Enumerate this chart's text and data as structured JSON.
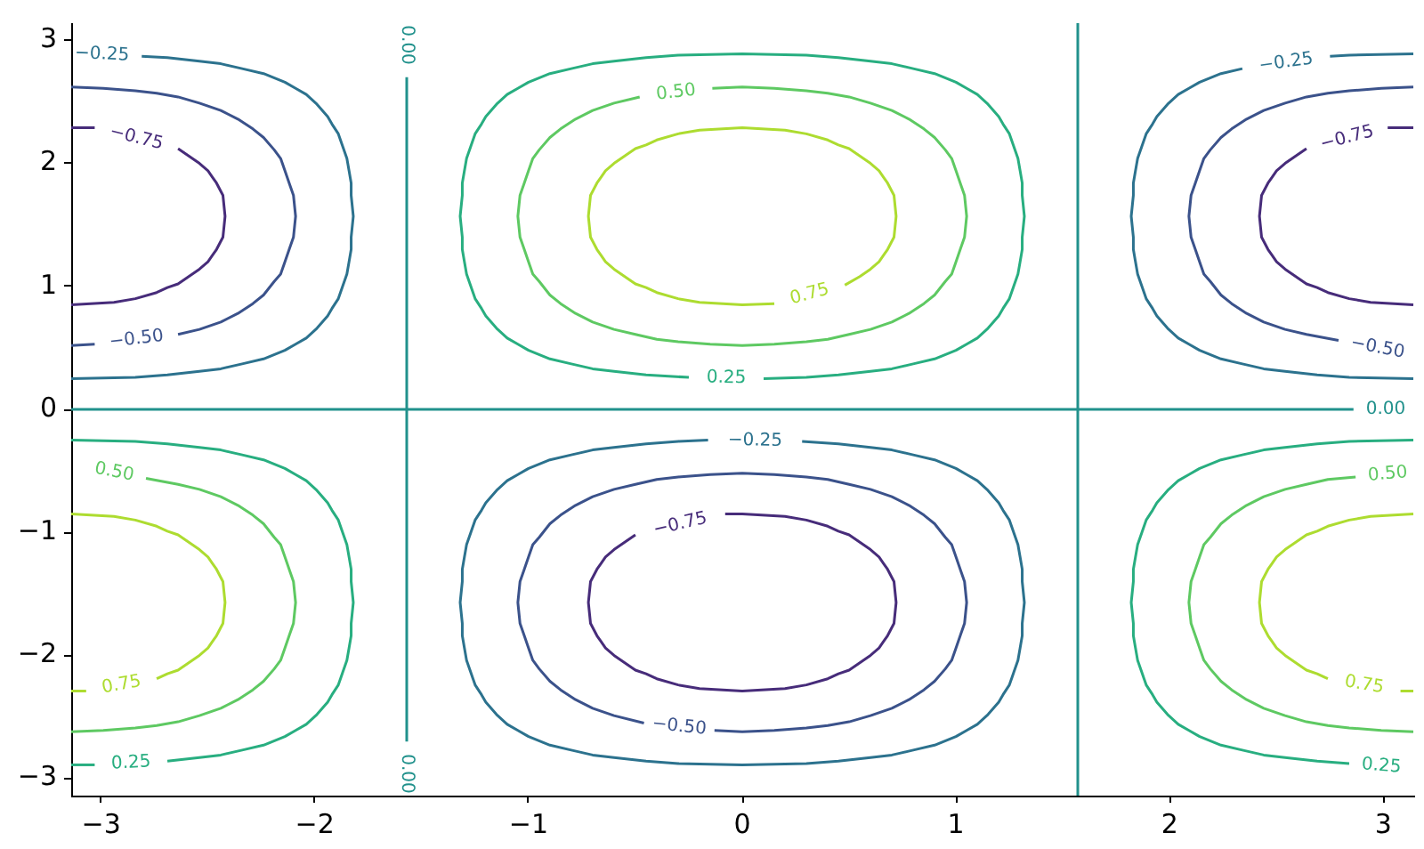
{
  "chart_data": {
    "type": "line",
    "xlim": [
      -3.14,
      3.14
    ],
    "ylim": [
      -3.14,
      3.14
    ],
    "xticks": [
      {
        "value": -3,
        "label": "−3"
      },
      {
        "value": -2,
        "label": "−2"
      },
      {
        "value": -1,
        "label": "−1"
      },
      0,
      1,
      2,
      3
    ],
    "yticks": [
      {
        "value": -3,
        "label": "−3"
      },
      {
        "value": -2,
        "label": "−2"
      },
      {
        "value": -1,
        "label": "−1"
      },
      0,
      1,
      2,
      3
    ],
    "series": [
      {
        "color": "#472c7a",
        "x": [
          -3.14,
          -2.94,
          -2.84,
          -2.74,
          -2.69,
          -2.64,
          -2.59,
          -2.54,
          -2.5,
          -2.48,
          -2.46,
          -2.43,
          -2.42,
          -2.43,
          -2.46,
          -2.48,
          -2.5,
          -2.54,
          -2.59,
          -2.64,
          null,
          3.14,
          2.94,
          2.84,
          2.74,
          2.69,
          2.64,
          2.59,
          2.54,
          2.5,
          2.48,
          2.46,
          2.43,
          2.42,
          2.43,
          2.46,
          2.48,
          2.5,
          2.54,
          2.59,
          2.64,
          null,
          3.02,
          3.14,
          null,
          -0.08,
          0,
          0.2,
          0.3,
          0.4,
          0.45,
          0.5,
          0.55,
          0.6,
          0.64,
          0.66,
          0.68,
          0.71,
          0.72,
          0.71,
          0.68,
          0.66,
          0.64,
          0.6,
          0.55,
          0.5,
          0.45,
          0.4,
          0.3,
          0.2,
          0,
          -0.2,
          -0.3,
          -0.4,
          -0.45,
          -0.5,
          -0.55,
          -0.6,
          -0.64,
          -0.66,
          -0.68,
          -0.71,
          -0.72,
          -0.71,
          -0.68,
          -0.66,
          -0.64,
          -0.6,
          -0.55,
          -0.5
        ],
        "values": [
          0.85,
          0.87,
          0.9,
          0.95,
          0.99,
          1.02,
          1.08,
          1.14,
          1.2,
          1.25,
          1.3,
          1.4,
          1.57,
          1.74,
          1.84,
          1.89,
          1.94,
          2.0,
          2.06,
          2.12,
          null,
          0.85,
          0.87,
          0.9,
          0.95,
          0.99,
          1.02,
          1.08,
          1.14,
          1.2,
          1.25,
          1.3,
          1.4,
          1.57,
          1.74,
          1.84,
          1.89,
          1.94,
          2.0,
          2.06,
          2.12,
          null,
          2.29,
          2.29,
          null,
          -0.85,
          -0.85,
          -0.87,
          -0.9,
          -0.95,
          -0.99,
          -1.02,
          -1.08,
          -1.14,
          -1.2,
          -1.25,
          -1.3,
          -1.4,
          -1.57,
          -1.74,
          -1.84,
          -1.89,
          -1.94,
          -2.0,
          -2.06,
          -2.12,
          -2.15,
          -2.19,
          -2.24,
          -2.27,
          -2.29,
          -2.27,
          -2.24,
          -2.19,
          -2.15,
          -2.12,
          -2.06,
          -2.0,
          -1.94,
          -1.89,
          -1.84,
          -1.74,
          -1.57,
          -1.4,
          -1.3,
          -1.25,
          -1.2,
          -1.14,
          -1.08,
          -1.02
        ]
      },
      {
        "color": "#472c7a",
        "x": [
          -3.14,
          -3.03
        ],
        "values": [
          2.29,
          2.29
        ]
      },
      {
        "color": "#3b528b",
        "x": [
          -3.14,
          -3.03,
          null,
          -2.64,
          -2.54,
          -2.44,
          -2.36,
          -2.29,
          -2.24,
          -2.19,
          -2.16,
          -2.14,
          -2.12,
          -2.1,
          -2.09,
          -2.1,
          -2.12,
          -2.14,
          -2.16,
          -2.19,
          -2.24,
          -2.29,
          -2.36,
          -2.44,
          -2.54,
          -2.64,
          -2.74,
          -2.84,
          -2.99,
          -3.14,
          null,
          2.79,
          2.64,
          2.54,
          2.44,
          2.36,
          2.29,
          2.24,
          2.19,
          2.16,
          2.14,
          2.12,
          2.1,
          2.09,
          2.1,
          2.12,
          2.14,
          2.16,
          2.19,
          2.24,
          2.29,
          2.36,
          2.44,
          2.54,
          2.64,
          2.74,
          2.84,
          2.99,
          3.14,
          null,
          -0.46,
          -0.6,
          -0.7,
          -0.78,
          -0.85,
          -0.9,
          -0.95,
          -0.98,
          -1.0,
          -1.02,
          -1.04,
          -1.05,
          -1.04,
          -1.02,
          -1.0,
          -0.98,
          -0.95,
          -0.9,
          -0.85,
          -0.78,
          -0.7,
          -0.6,
          -0.5,
          -0.4,
          -0.3,
          -0.15,
          0,
          0.15,
          0.3,
          0.4,
          0.5,
          0.6,
          0.7,
          0.78,
          0.85,
          0.9,
          0.95,
          0.98,
          1.0,
          1.02,
          1.04,
          1.05,
          1.04,
          1.02,
          1.0,
          0.98,
          0.95,
          0.9,
          0.85,
          0.78,
          0.7,
          0.6,
          0.5,
          0.4,
          0.3,
          0.15,
          0,
          -0.13
        ],
        "values": [
          0.52,
          0.53,
          null,
          0.61,
          0.65,
          0.71,
          0.78,
          0.86,
          0.93,
          1.04,
          1.1,
          1.2,
          1.3,
          1.4,
          1.57,
          1.74,
          1.84,
          1.94,
          2.04,
          2.11,
          2.21,
          2.28,
          2.36,
          2.43,
          2.49,
          2.54,
          2.57,
          2.59,
          2.61,
          2.62,
          null,
          0.56,
          0.61,
          0.65,
          0.71,
          0.78,
          0.86,
          0.93,
          1.04,
          1.1,
          1.2,
          1.3,
          1.4,
          1.57,
          1.74,
          1.84,
          1.94,
          2.04,
          2.11,
          2.21,
          2.28,
          2.36,
          2.43,
          2.49,
          2.54,
          2.57,
          2.59,
          2.61,
          2.62,
          null,
          -2.55,
          -2.49,
          -2.43,
          -2.36,
          -2.28,
          -2.21,
          -2.11,
          -2.04,
          -1.94,
          -1.84,
          -1.74,
          -1.57,
          -1.4,
          -1.3,
          -1.2,
          -1.1,
          -1.04,
          -0.93,
          -0.86,
          -0.78,
          -0.71,
          -0.65,
          -0.61,
          -0.57,
          -0.55,
          -0.53,
          -0.52,
          -0.53,
          -0.55,
          -0.57,
          -0.61,
          -0.65,
          -0.71,
          -0.78,
          -0.86,
          -0.93,
          -1.04,
          -1.1,
          -1.2,
          -1.3,
          -1.4,
          -1.57,
          -1.74,
          -1.84,
          -1.94,
          -2.04,
          -2.11,
          -2.21,
          -2.28,
          -2.36,
          -2.43,
          -2.49,
          -2.54,
          -2.57,
          -2.59,
          -2.61,
          -2.62,
          -2.61
        ]
      },
      {
        "color": "#2c728e",
        "x": [
          -3.14,
          -2.84,
          -2.69,
          -2.54,
          -2.44,
          -2.34,
          -2.24,
          -2.14,
          -2.09,
          -2.04,
          -1.99,
          -1.94,
          -1.92,
          -1.89,
          -1.87,
          -1.85,
          -1.84,
          -1.83,
          -1.83,
          -1.82,
          -1.83,
          -1.83,
          -1.84,
          -1.85,
          -1.87,
          -1.89,
          -1.92,
          -1.94,
          -1.99,
          -2.04,
          -2.09,
          -2.14,
          -2.24,
          -2.34,
          -2.44,
          -2.54,
          -2.69,
          -2.81,
          null,
          3.14,
          2.84,
          2.69,
          2.54,
          2.44,
          2.34,
          2.24,
          2.14,
          2.09,
          2.04,
          1.99,
          1.94,
          1.92,
          1.89,
          1.87,
          1.85,
          1.84,
          1.83,
          1.83,
          1.82,
          1.83,
          1.83,
          1.84,
          1.85,
          1.87,
          1.89,
          1.92,
          1.94,
          1.99,
          2.04,
          2.09,
          2.14,
          2.24,
          2.34,
          null,
          2.75,
          2.84,
          3.14,
          null,
          0.28,
          0.45,
          0.6,
          0.7,
          0.8,
          0.9,
          1.0,
          1.05,
          1.1,
          1.15,
          1.2,
          1.22,
          1.25,
          1.27,
          1.29,
          1.3,
          1.31,
          1.31,
          1.32,
          1.31,
          1.31,
          1.3,
          1.29,
          1.27,
          1.25,
          1.22,
          1.2,
          1.15,
          1.1,
          1.05,
          1.0,
          0.9,
          0.8,
          0.7,
          0.6,
          0.45,
          0.3,
          0,
          -0.3,
          -0.45,
          -0.6,
          -0.7,
          -0.8,
          -0.9,
          -1.0,
          -1.05,
          -1.1,
          -1.15,
          -1.2,
          -1.22,
          -1.25,
          -1.27,
          -1.29,
          -1.3,
          -1.31,
          -1.31,
          -1.32,
          -1.31,
          -1.31,
          -1.3,
          -1.29,
          -1.27,
          -1.25,
          -1.22,
          -1.2,
          -1.15,
          -1.1,
          -1.05,
          -1.0,
          -0.9,
          -0.8,
          -0.7,
          -0.6,
          -0.45,
          -0.3,
          -0.16
        ],
        "values": [
          0.25,
          0.26,
          0.28,
          0.31,
          0.33,
          0.37,
          0.41,
          0.48,
          0.53,
          0.58,
          0.66,
          0.76,
          0.82,
          0.9,
          1.0,
          1.1,
          1.2,
          1.3,
          1.4,
          1.57,
          1.74,
          1.84,
          1.94,
          2.04,
          2.14,
          2.24,
          2.32,
          2.38,
          2.48,
          2.56,
          2.61,
          2.66,
          2.73,
          2.77,
          2.81,
          2.83,
          2.86,
          2.87,
          null,
          0.25,
          0.26,
          0.28,
          0.31,
          0.33,
          0.37,
          0.41,
          0.48,
          0.53,
          0.58,
          0.66,
          0.76,
          0.82,
          0.9,
          1.0,
          1.1,
          1.2,
          1.3,
          1.4,
          1.57,
          1.74,
          1.84,
          1.94,
          2.04,
          2.14,
          2.24,
          2.32,
          2.38,
          2.48,
          2.56,
          2.61,
          2.66,
          2.73,
          2.77,
          null,
          2.87,
          2.88,
          2.89,
          null,
          -0.26,
          -0.28,
          -0.31,
          -0.33,
          -0.37,
          -0.41,
          -0.48,
          -0.53,
          -0.58,
          -0.66,
          -0.76,
          -0.82,
          -0.9,
          -1.0,
          -1.1,
          -1.2,
          -1.3,
          -1.4,
          -1.57,
          -1.74,
          -1.84,
          -1.94,
          -2.04,
          -2.14,
          -2.24,
          -2.32,
          -2.38,
          -2.48,
          -2.56,
          -2.61,
          -2.66,
          -2.73,
          -2.77,
          -2.81,
          -2.83,
          -2.86,
          -2.88,
          -2.89,
          -2.88,
          -2.86,
          -2.83,
          -2.81,
          -2.77,
          -2.73,
          -2.66,
          -2.61,
          -2.56,
          -2.48,
          -2.38,
          -2.32,
          -2.24,
          -2.14,
          -2.04,
          -1.94,
          -1.84,
          -1.74,
          -1.57,
          -1.4,
          -1.3,
          -1.2,
          -1.1,
          -1.0,
          -0.9,
          -0.82,
          -0.76,
          -0.66,
          -0.58,
          -0.53,
          -0.48,
          -0.41,
          -0.37,
          -0.33,
          -0.31,
          -0.28,
          -0.26,
          -0.25
        ]
      },
      {
        "color": "#21918c",
        "x": [
          -1.57,
          -1.57,
          null,
          1.57,
          1.57,
          null,
          -3.14,
          2.86
        ],
        "values": [
          -2.7,
          2.7,
          null,
          -3.14,
          3.14,
          null,
          0,
          0
        ]
      },
      {
        "color": "#28ae80",
        "x": [
          0.1,
          0.3,
          0.45,
          0.6,
          0.7,
          0.8,
          0.9,
          1.0,
          1.05,
          1.1,
          1.15,
          1.2,
          1.22,
          1.25,
          1.27,
          1.29,
          1.3,
          1.31,
          1.31,
          1.32,
          1.31,
          1.31,
          1.3,
          1.29,
          1.27,
          1.25,
          1.22,
          1.2,
          1.15,
          1.1,
          1.05,
          1.0,
          0.9,
          0.8,
          0.7,
          0.6,
          0.45,
          0.3,
          0,
          -0.3,
          -0.45,
          -0.6,
          -0.7,
          -0.8,
          -0.9,
          -1.0,
          -1.05,
          -1.1,
          -1.15,
          -1.2,
          -1.22,
          -1.25,
          -1.27,
          -1.29,
          -1.3,
          -1.31,
          -1.31,
          -1.32,
          -1.31,
          -1.31,
          -1.3,
          -1.29,
          -1.27,
          -1.25,
          -1.22,
          -1.2,
          -1.15,
          -1.1,
          -1.05,
          -1.0,
          -0.9,
          -0.8,
          -0.7,
          -0.6,
          -0.45,
          -0.25,
          null,
          -3.14,
          -2.84,
          -2.69,
          -2.54,
          -2.44,
          -2.34,
          -2.24,
          -2.14,
          -2.09,
          -2.04,
          -1.99,
          -1.94,
          -1.92,
          -1.89,
          -1.87,
          -1.85,
          -1.84,
          -1.83,
          -1.83,
          -1.82,
          -1.83,
          -1.83,
          -1.84,
          -1.85,
          -1.87,
          -1.89,
          -1.92,
          -1.94,
          -1.99,
          -2.04,
          -2.09,
          -2.14,
          -2.24,
          -2.34,
          -2.44,
          -2.54,
          -2.69,
          null,
          3.14,
          2.84,
          2.69,
          2.54,
          2.44,
          2.34,
          2.24,
          2.14,
          2.09,
          2.04,
          1.99,
          1.94,
          1.92,
          1.89,
          1.87,
          1.85,
          1.84,
          1.83,
          1.83,
          1.82,
          1.83,
          1.83,
          1.84,
          1.85,
          1.87,
          1.89,
          1.92,
          1.94,
          1.99,
          2.04,
          2.09,
          2.14,
          2.24,
          2.34,
          2.44,
          2.54,
          2.69,
          2.84
        ],
        "values": [
          0.25,
          0.26,
          0.28,
          0.31,
          0.33,
          0.37,
          0.41,
          0.48,
          0.53,
          0.58,
          0.66,
          0.76,
          0.82,
          0.9,
          1.0,
          1.1,
          1.2,
          1.3,
          1.4,
          1.57,
          1.74,
          1.84,
          1.94,
          2.04,
          2.14,
          2.24,
          2.32,
          2.38,
          2.48,
          2.56,
          2.61,
          2.66,
          2.73,
          2.77,
          2.81,
          2.83,
          2.86,
          2.88,
          2.89,
          2.88,
          2.86,
          2.83,
          2.81,
          2.77,
          2.73,
          2.66,
          2.61,
          2.56,
          2.48,
          2.38,
          2.32,
          2.24,
          2.14,
          2.04,
          1.94,
          1.84,
          1.74,
          1.57,
          1.4,
          1.3,
          1.2,
          1.1,
          1.0,
          0.9,
          0.82,
          0.76,
          0.66,
          0.58,
          0.53,
          0.48,
          0.41,
          0.37,
          0.33,
          0.31,
          0.28,
          0.26,
          null,
          -0.25,
          -0.26,
          -0.28,
          -0.31,
          -0.33,
          -0.37,
          -0.41,
          -0.48,
          -0.53,
          -0.58,
          -0.66,
          -0.76,
          -0.82,
          -0.9,
          -1.0,
          -1.1,
          -1.2,
          -1.3,
          -1.4,
          -1.57,
          -1.74,
          -1.84,
          -1.94,
          -2.04,
          -2.14,
          -2.24,
          -2.32,
          -2.38,
          -2.48,
          -2.56,
          -2.61,
          -2.66,
          -2.73,
          -2.77,
          -2.81,
          -2.83,
          -2.86,
          null,
          -0.25,
          -0.26,
          -0.28,
          -0.31,
          -0.33,
          -0.37,
          -0.41,
          -0.48,
          -0.53,
          -0.58,
          -0.66,
          -0.76,
          -0.82,
          -0.9,
          -1.0,
          -1.1,
          -1.2,
          -1.3,
          -1.4,
          -1.57,
          -1.74,
          -1.84,
          -1.94,
          -2.04,
          -2.14,
          -2.24,
          -2.32,
          -2.38,
          -2.48,
          -2.56,
          -2.61,
          -2.66,
          -2.73,
          -2.77,
          -2.81,
          -2.83,
          -2.86,
          -2.88
        ]
      },
      {
        "color": "#28ae80",
        "x": [
          -3.14,
          -3.03
        ],
        "values": [
          -2.89,
          -2.89
        ]
      },
      {
        "color": "#5ec962",
        "x": [
          -0.48,
          -0.6,
          -0.7,
          -0.78,
          -0.85,
          -0.9,
          -0.95,
          -0.98,
          -1.0,
          -1.02,
          -1.04,
          -1.05,
          -1.04,
          -1.02,
          -1.0,
          -0.98,
          -0.95,
          -0.9,
          -0.85,
          -0.78,
          -0.7,
          -0.6,
          -0.5,
          -0.4,
          -0.3,
          -0.15,
          0,
          0.15,
          0.3,
          0.4,
          0.5,
          0.6,
          0.7,
          0.78,
          0.85,
          0.9,
          0.95,
          0.98,
          1.0,
          1.02,
          1.04,
          1.05,
          1.04,
          1.02,
          1.0,
          0.98,
          0.95,
          0.9,
          0.85,
          0.78,
          0.7,
          0.6,
          0.5,
          0.4,
          0.3,
          0.15,
          0,
          -0.14,
          null,
          -2.79,
          -2.64,
          -2.54,
          -2.44,
          -2.36,
          -2.29,
          -2.24,
          -2.19,
          -2.16,
          -2.14,
          -2.12,
          -2.1,
          -2.09,
          -2.1,
          -2.12,
          -2.14,
          -2.16,
          -2.19,
          -2.24,
          -2.29,
          -2.36,
          -2.44,
          -2.54,
          -2.64,
          -2.74,
          -2.84,
          -2.99,
          -3.14,
          null,
          2.87,
          2.74,
          2.64,
          2.54,
          2.44,
          2.36,
          2.29,
          2.24,
          2.19,
          2.16,
          2.14,
          2.12,
          2.1,
          2.09,
          2.1,
          2.12,
          2.14,
          2.16,
          2.19,
          2.24,
          2.29,
          2.36,
          2.44,
          2.54,
          2.64,
          2.74,
          2.84,
          2.99,
          3.14
        ],
        "values": [
          2.54,
          2.49,
          2.43,
          2.36,
          2.28,
          2.21,
          2.11,
          2.04,
          1.94,
          1.84,
          1.74,
          1.57,
          1.4,
          1.3,
          1.2,
          1.1,
          1.04,
          0.93,
          0.86,
          0.78,
          0.71,
          0.65,
          0.61,
          0.57,
          0.55,
          0.53,
          0.52,
          0.53,
          0.55,
          0.57,
          0.61,
          0.65,
          0.71,
          0.78,
          0.86,
          0.93,
          1.04,
          1.1,
          1.2,
          1.3,
          1.4,
          1.57,
          1.74,
          1.84,
          1.94,
          2.04,
          2.11,
          2.21,
          2.28,
          2.36,
          2.43,
          2.49,
          2.54,
          2.57,
          2.59,
          2.61,
          2.62,
          2.61,
          null,
          -0.56,
          -0.61,
          -0.65,
          -0.71,
          -0.78,
          -0.86,
          -0.93,
          -1.04,
          -1.1,
          -1.2,
          -1.3,
          -1.4,
          -1.57,
          -1.74,
          -1.84,
          -1.94,
          -2.04,
          -2.11,
          -2.21,
          -2.28,
          -2.36,
          -2.43,
          -2.49,
          -2.54,
          -2.57,
          -2.59,
          -2.61,
          -2.62,
          null,
          -0.55,
          -0.57,
          -0.61,
          -0.65,
          -0.71,
          -0.78,
          -0.86,
          -0.93,
          -1.04,
          -1.1,
          -1.2,
          -1.3,
          -1.4,
          -1.57,
          -1.74,
          -1.84,
          -1.94,
          -2.04,
          -2.11,
          -2.21,
          -2.28,
          -2.36,
          -2.43,
          -2.49,
          -2.54,
          -2.57,
          -2.59,
          -2.61,
          -2.62
        ]
      },
      {
        "color": "#addc30",
        "x": [
          0.48,
          0.55,
          0.6,
          0.64,
          0.66,
          0.68,
          0.71,
          0.72,
          0.71,
          0.68,
          0.66,
          0.64,
          0.6,
          0.55,
          0.5,
          0.45,
          0.4,
          0.3,
          0.2,
          0,
          -0.2,
          -0.3,
          -0.4,
          -0.45,
          -0.5,
          -0.55,
          -0.6,
          -0.64,
          -0.66,
          -0.68,
          -0.71,
          -0.72,
          -0.71,
          -0.68,
          -0.66,
          -0.64,
          -0.6,
          -0.55,
          -0.5,
          -0.45,
          -0.4,
          -0.3,
          -0.2,
          0,
          0.15,
          null,
          -3.14,
          -2.94,
          -2.84,
          -2.74,
          -2.69,
          -2.64,
          -2.59,
          -2.54,
          -2.5,
          -2.48,
          -2.46,
          -2.43,
          -2.42,
          -2.43,
          -2.46,
          -2.48,
          -2.5,
          -2.54,
          -2.59,
          -2.64,
          -2.69,
          -2.74,
          null,
          3.14,
          2.94,
          2.84,
          2.74,
          2.69,
          2.64,
          2.59,
          2.54,
          2.5,
          2.48,
          2.46,
          2.43,
          2.42,
          2.43,
          2.46,
          2.48,
          2.5,
          2.54,
          2.59,
          2.64,
          2.69,
          2.74,
          null,
          3.08,
          3.14
        ],
        "values": [
          1.01,
          1.08,
          1.14,
          1.2,
          1.25,
          1.3,
          1.4,
          1.57,
          1.74,
          1.84,
          1.89,
          1.94,
          2.0,
          2.06,
          2.12,
          2.15,
          2.19,
          2.24,
          2.27,
          2.29,
          2.27,
          2.24,
          2.19,
          2.15,
          2.12,
          2.06,
          2.0,
          1.94,
          1.89,
          1.84,
          1.74,
          1.57,
          1.4,
          1.3,
          1.25,
          1.2,
          1.14,
          1.08,
          1.02,
          0.99,
          0.95,
          0.9,
          0.87,
          0.85,
          0.86,
          null,
          -0.85,
          -0.87,
          -0.9,
          -0.95,
          -0.99,
          -1.02,
          -1.08,
          -1.14,
          -1.2,
          -1.25,
          -1.3,
          -1.4,
          -1.57,
          -1.74,
          -1.84,
          -1.89,
          -1.94,
          -2.0,
          -2.06,
          -2.12,
          -2.15,
          -2.19,
          null,
          -0.85,
          -0.87,
          -0.9,
          -0.95,
          -0.99,
          -1.02,
          -1.08,
          -1.14,
          -1.2,
          -1.25,
          -1.3,
          -1.4,
          -1.57,
          -1.74,
          -1.84,
          -1.89,
          -1.94,
          -2.0,
          -2.06,
          -2.12,
          -2.15,
          -2.19,
          null,
          -2.29,
          -2.29
        ]
      },
      {
        "color": "#addc30",
        "x": [
          -3.14,
          -3.07
        ],
        "values": [
          -2.29,
          -2.29
        ]
      }
    ],
    "annotations": [
      {
        "text": "−0.25",
        "x": -2.81,
        "y": 2.87
      },
      {
        "text": "0.00",
        "x": -1.57,
        "y": 2.7
      },
      {
        "text": "−0.25",
        "x": 2.34,
        "y": 2.77
      },
      {
        "text": "−0.75",
        "x": -2.64,
        "y": 2.12
      },
      {
        "text": "−0.75",
        "x": 2.64,
        "y": 2.12
      },
      {
        "text": "0.50",
        "x": -0.48,
        "y": 2.54
      },
      {
        "text": "0.75",
        "x": 0.48,
        "y": 1.01
      },
      {
        "text": "−0.50",
        "x": -2.64,
        "y": 0.61
      },
      {
        "text": "−0.50",
        "x": 2.79,
        "y": 0.56
      },
      {
        "text": "0.25",
        "x": -0.25,
        "y": 0.26
      },
      {
        "text": "0.00",
        "x": 2.86,
        "y": 0
      },
      {
        "text": "−0.25",
        "x": -0.16,
        "y": -0.25
      },
      {
        "text": "0.50",
        "x": -2.79,
        "y": -0.56
      },
      {
        "text": "0.50",
        "x": 2.87,
        "y": -0.55
      },
      {
        "text": "−0.75",
        "x": -0.5,
        "y": -1.02
      },
      {
        "text": "0.75",
        "x": -2.74,
        "y": -2.19
      },
      {
        "text": "0.75",
        "x": 2.74,
        "y": -2.19
      },
      {
        "text": "−0.50",
        "x": -0.46,
        "y": -2.55
      },
      {
        "text": "0.25",
        "x": -2.69,
        "y": -2.86
      },
      {
        "text": "0.25",
        "x": 2.84,
        "y": -2.88
      },
      {
        "text": "0.00",
        "x": -1.57,
        "y": -2.7
      }
    ]
  }
}
